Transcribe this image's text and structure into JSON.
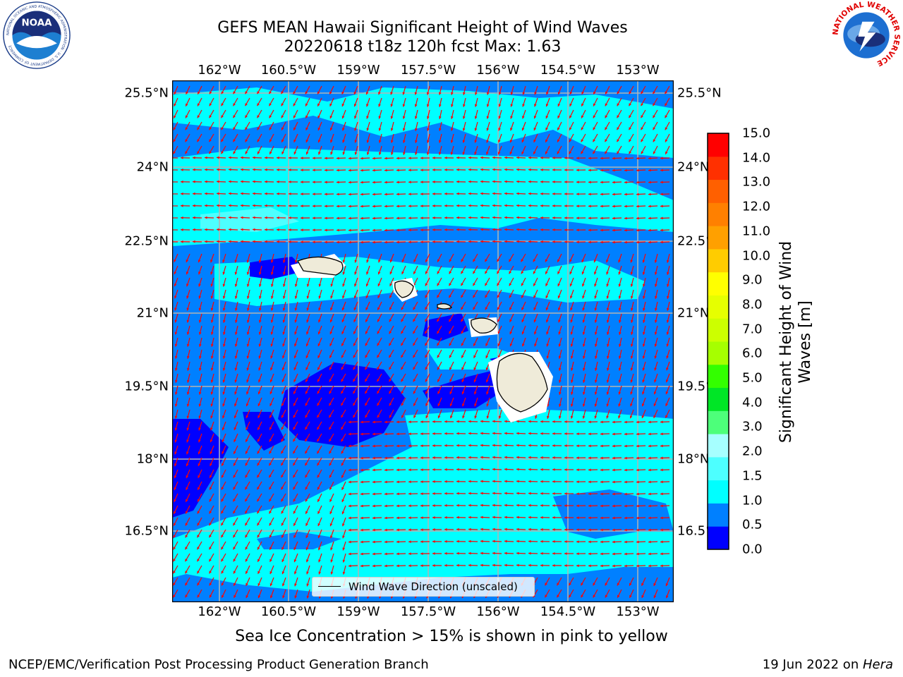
{
  "title": {
    "line1": "GEFS MEAN Hawaii Significant Height of Wind Waves",
    "line2": "20220618 t18z 120h fcst   Max: 1.63"
  },
  "map": {
    "lon_labels": [
      "162°W",
      "160.5°W",
      "159°W",
      "157.5°W",
      "156°W",
      "154.5°W",
      "153°W"
    ],
    "lat_labels": [
      "25.5°N",
      "24°N",
      "22.5°N",
      "21°N",
      "19.5°N",
      "18°N",
      "16.5°N"
    ],
    "legend_label": "Wind Wave Direction (unscaled)",
    "arrow_color": "#ff0000",
    "land_color": "#efebd9"
  },
  "colorbar": {
    "title_line1": "Significant Height of Wind",
    "title_line2": "Waves [m]",
    "labels": [
      "15.0",
      "14.0",
      "13.0",
      "12.0",
      "11.0",
      "10.0",
      "9.0",
      "8.0",
      "7.0",
      "6.0",
      "5.0",
      "4.0",
      "3.0",
      "2.0",
      "1.5",
      "1.0",
      "0.5",
      "0.0"
    ],
    "colors": [
      "#0000ff",
      "#0080ff",
      "#00ffff",
      "#4dffff",
      "#a6ffff",
      "#4dff7a",
      "#00e626",
      "#33ff00",
      "#a6ff00",
      "#ccff00",
      "#e6ff00",
      "#ffff00",
      "#ffcc00",
      "#ffa000",
      "#ff8000",
      "#ff6000",
      "#ff3000",
      "#ff0000"
    ]
  },
  "logos": {
    "noaa_text": "NOAA",
    "noaa_ring": "NATIONAL OCEANIC AND ATMOSPHERIC ADMINISTRATION · U.S. DEPARTMENT OF COMMERCE",
    "nws_ring": "NATIONAL WEATHER SERVICE"
  },
  "subtitle": "Sea Ice Concentration > 15% is shown in pink to yellow",
  "footer": {
    "left": "NCEP/EMC/Verification Post Processing Product Generation Branch",
    "right_prefix": "19 Jun 2022 on ",
    "right_host": "Hera"
  }
}
